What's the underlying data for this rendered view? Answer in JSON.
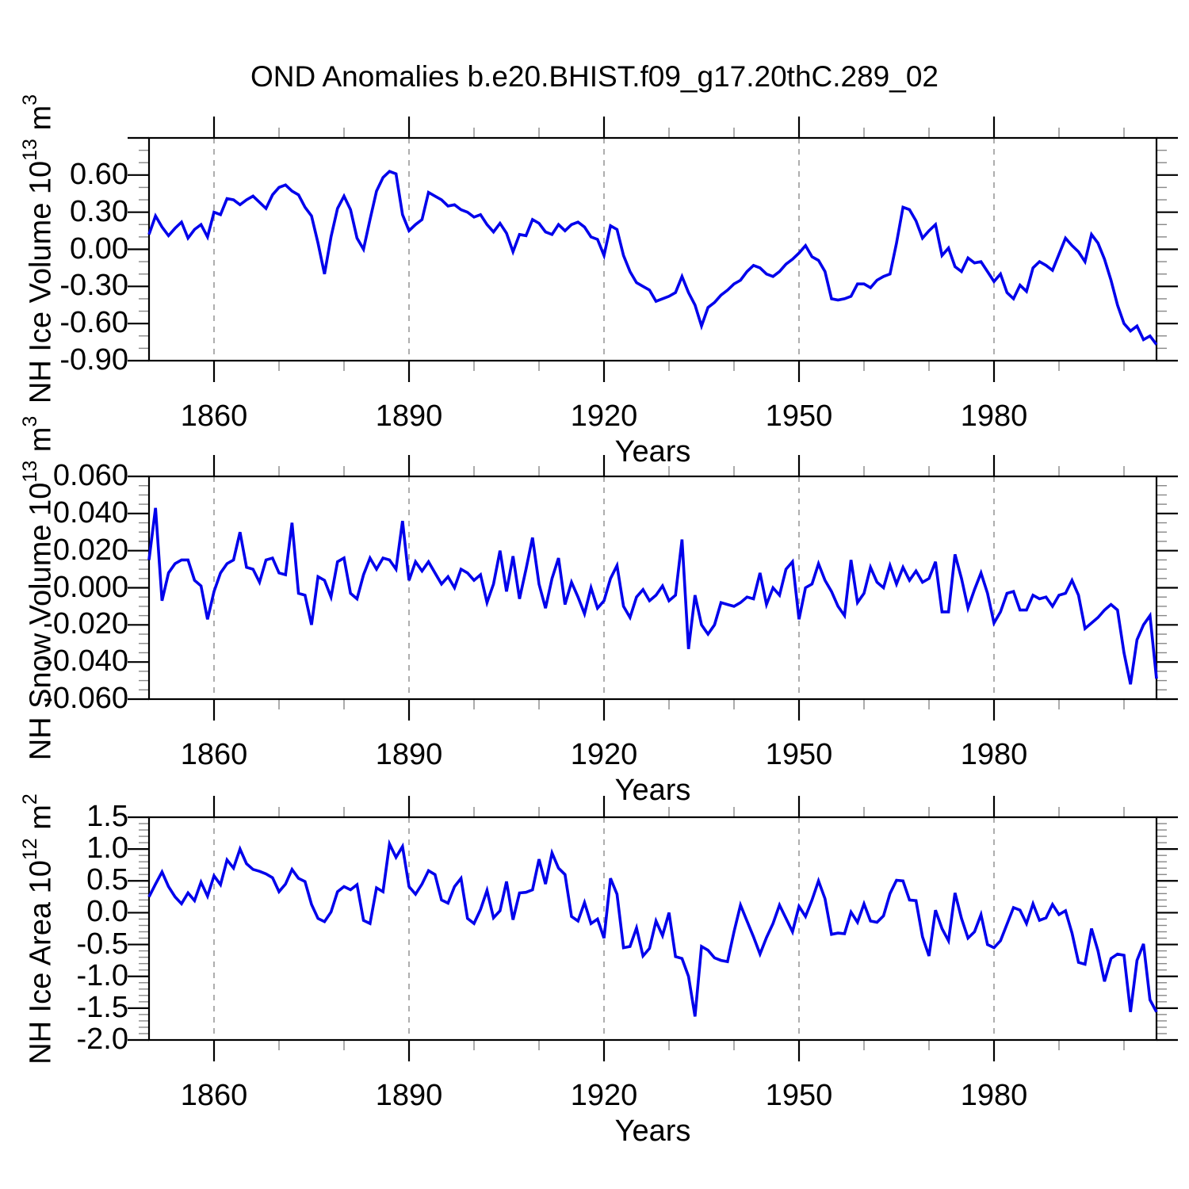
{
  "title": "OND Anomalies b.e20.BHIST.f09_g17.20thC.289_02",
  "colors": {
    "line": "#0000EB",
    "grid": "#999999",
    "axis": "#000000",
    "minor_tick": "#888888"
  },
  "chart_data": [
    {
      "type": "line",
      "panel": "nh-ice-volume",
      "ylabel": {
        "base": "NH Ice Volume 10",
        "exp": "13",
        "unit": " m",
        "unit_exp": "3"
      },
      "xlabel": "Years",
      "ylim": [
        -0.9,
        0.9
      ],
      "yticks": [
        {
          "value": 0.6,
          "label": "0.60"
        },
        {
          "value": 0.3,
          "label": "0.30"
        },
        {
          "value": 0.0,
          "label": "0.00"
        },
        {
          "value": -0.3,
          "label": "-0.30"
        },
        {
          "value": -0.6,
          "label": "-0.60"
        },
        {
          "value": -0.9,
          "label": "-0.90"
        }
      ],
      "ytick_extra": [
        0.9
      ],
      "yminor_step": 0.1,
      "xlim": [
        1850,
        2005
      ],
      "x_start": 1850,
      "x_step": 1,
      "xticks": [
        {
          "value": 1860,
          "label": "1860"
        },
        {
          "value": 1890,
          "label": "1890"
        },
        {
          "value": 1920,
          "label": "1920"
        },
        {
          "value": 1950,
          "label": "1950"
        },
        {
          "value": 1980,
          "label": "1980"
        }
      ],
      "xminor_step": 10,
      "grid": "vertical-dashed",
      "values": [
        0.12,
        0.27,
        0.18,
        0.11,
        0.17,
        0.22,
        0.09,
        0.16,
        0.2,
        0.1,
        0.3,
        0.28,
        0.41,
        0.4,
        0.36,
        0.4,
        0.43,
        0.38,
        0.33,
        0.44,
        0.5,
        0.52,
        0.47,
        0.44,
        0.34,
        0.27,
        0.05,
        -0.2,
        0.1,
        0.33,
        0.43,
        0.32,
        0.09,
        0.0,
        0.24,
        0.47,
        0.58,
        0.63,
        0.61,
        0.28,
        0.15,
        0.2,
        0.24,
        0.46,
        0.43,
        0.4,
        0.35,
        0.36,
        0.32,
        0.3,
        0.26,
        0.28,
        0.2,
        0.14,
        0.21,
        0.13,
        -0.02,
        0.12,
        0.11,
        0.24,
        0.21,
        0.14,
        0.12,
        0.2,
        0.15,
        0.2,
        0.22,
        0.18,
        0.1,
        0.08,
        -0.05,
        0.19,
        0.16,
        -0.05,
        -0.18,
        -0.27,
        -0.3,
        -0.33,
        -0.42,
        -0.4,
        -0.38,
        -0.35,
        -0.22,
        -0.35,
        -0.45,
        -0.62,
        -0.47,
        -0.43,
        -0.37,
        -0.33,
        -0.28,
        -0.25,
        -0.18,
        -0.13,
        -0.15,
        -0.2,
        -0.22,
        -0.18,
        -0.12,
        -0.08,
        -0.03,
        0.03,
        -0.06,
        -0.09,
        -0.18,
        -0.4,
        -0.41,
        -0.4,
        -0.38,
        -0.28,
        -0.28,
        -0.31,
        -0.25,
        -0.22,
        -0.2,
        0.05,
        0.34,
        0.32,
        0.23,
        0.09,
        0.15,
        0.2,
        -0.05,
        0.01,
        -0.14,
        -0.18,
        -0.07,
        -0.11,
        -0.1,
        -0.18,
        -0.26,
        -0.2,
        -0.35,
        -0.4,
        -0.29,
        -0.34,
        -0.15,
        -0.1,
        -0.13,
        -0.17,
        -0.04,
        0.09,
        0.03,
        -0.02,
        -0.1,
        0.12,
        0.05,
        -0.08,
        -0.25,
        -0.45,
        -0.6,
        -0.66,
        -0.62,
        -0.73,
        -0.7,
        -0.77
      ]
    },
    {
      "type": "line",
      "panel": "nh-snow-volume",
      "ylabel": {
        "base": "NH Snow Volume 10",
        "exp": "13",
        "unit": " m",
        "unit_exp": "3"
      },
      "xlabel": "Years",
      "ylim": [
        -0.06,
        0.06
      ],
      "yticks": [
        {
          "value": 0.06,
          "label": "0.060"
        },
        {
          "value": 0.04,
          "label": "0.040"
        },
        {
          "value": 0.02,
          "label": "0.020"
        },
        {
          "value": 0.0,
          "label": "0.000"
        },
        {
          "value": -0.02,
          "label": "-0.020"
        },
        {
          "value": -0.04,
          "label": "-0.040"
        },
        {
          "value": -0.06,
          "label": "-0.060"
        }
      ],
      "ytick_extra": [],
      "yminor_step": 0.005,
      "xlim": [
        1850,
        2005
      ],
      "x_start": 1850,
      "x_step": 1,
      "xticks": [
        {
          "value": 1860,
          "label": "1860"
        },
        {
          "value": 1890,
          "label": "1890"
        },
        {
          "value": 1920,
          "label": "1920"
        },
        {
          "value": 1950,
          "label": "1950"
        },
        {
          "value": 1980,
          "label": "1980"
        }
      ],
      "xminor_step": 10,
      "grid": "vertical-dashed",
      "values": [
        0.015,
        0.043,
        -0.007,
        0.008,
        0.013,
        0.015,
        0.015,
        0.004,
        0.001,
        -0.017,
        -0.002,
        0.008,
        0.013,
        0.015,
        0.03,
        0.011,
        0.01,
        0.003,
        0.015,
        0.016,
        0.008,
        0.007,
        0.035,
        -0.003,
        -0.004,
        -0.02,
        0.006,
        0.004,
        -0.005,
        0.014,
        0.016,
        -0.003,
        -0.006,
        0.007,
        0.016,
        0.01,
        0.016,
        0.015,
        0.01,
        0.036,
        0.004,
        0.014,
        0.009,
        0.014,
        0.008,
        0.002,
        0.006,
        0.0,
        0.01,
        0.008,
        0.004,
        0.007,
        -0.008,
        0.002,
        0.02,
        -0.002,
        0.017,
        -0.006,
        0.01,
        0.027,
        0.002,
        -0.011,
        0.005,
        0.016,
        -0.009,
        0.003,
        -0.005,
        -0.014,
        0.0,
        -0.011,
        -0.007,
        0.005,
        0.012,
        -0.01,
        -0.016,
        -0.005,
        -0.001,
        -0.007,
        -0.004,
        0.001,
        -0.007,
        -0.004,
        0.026,
        -0.033,
        -0.004,
        -0.02,
        -0.025,
        -0.02,
        -0.008,
        -0.009,
        -0.01,
        -0.008,
        -0.005,
        -0.006,
        0.008,
        -0.009,
        0.0,
        -0.004,
        0.01,
        0.014,
        -0.017,
        0.0,
        0.002,
        0.013,
        0.004,
        -0.002,
        -0.01,
        -0.015,
        0.015,
        -0.008,
        -0.003,
        0.011,
        0.003,
        0.0,
        0.012,
        0.002,
        0.011,
        0.004,
        0.009,
        0.003,
        0.005,
        0.014,
        -0.013,
        -0.013,
        0.018,
        0.005,
        -0.011,
        -0.001,
        0.008,
        -0.003,
        -0.019,
        -0.013,
        -0.003,
        -0.002,
        -0.012,
        -0.012,
        -0.004,
        -0.006,
        -0.005,
        -0.01,
        -0.004,
        -0.003,
        0.004,
        -0.004,
        -0.022,
        -0.019,
        -0.016,
        -0.012,
        -0.009,
        -0.012,
        -0.035,
        -0.052,
        -0.028,
        -0.02,
        -0.015,
        -0.049
      ]
    },
    {
      "type": "line",
      "panel": "nh-ice-area",
      "ylabel": {
        "base": "NH Ice Area 10",
        "exp": "12",
        "unit": " m",
        "unit_exp": "2"
      },
      "xlabel": "Years",
      "ylim": [
        -2.0,
        1.5
      ],
      "yticks": [
        {
          "value": 1.5,
          "label": "1.5"
        },
        {
          "value": 1.0,
          "label": "1.0"
        },
        {
          "value": 0.5,
          "label": "0.5"
        },
        {
          "value": 0.0,
          "label": "0.0"
        },
        {
          "value": -0.5,
          "label": "-0.5"
        },
        {
          "value": -1.0,
          "label": "-1.0"
        },
        {
          "value": -1.5,
          "label": "-1.5"
        },
        {
          "value": -2.0,
          "label": "-2.0"
        }
      ],
      "ytick_extra": [],
      "yminor_step": 0.1,
      "xlim": [
        1850,
        2005
      ],
      "x_start": 1850,
      "x_step": 1,
      "xticks": [
        {
          "value": 1860,
          "label": "1860"
        },
        {
          "value": 1890,
          "label": "1890"
        },
        {
          "value": 1920,
          "label": "1920"
        },
        {
          "value": 1950,
          "label": "1950"
        },
        {
          "value": 1980,
          "label": "1980"
        }
      ],
      "xminor_step": 10,
      "grid": "vertical-dashed",
      "values": [
        0.25,
        0.45,
        0.64,
        0.41,
        0.25,
        0.14,
        0.31,
        0.19,
        0.48,
        0.26,
        0.58,
        0.44,
        0.83,
        0.7,
        1.0,
        0.77,
        0.68,
        0.65,
        0.61,
        0.55,
        0.33,
        0.45,
        0.68,
        0.54,
        0.49,
        0.13,
        -0.09,
        -0.14,
        0.01,
        0.33,
        0.41,
        0.36,
        0.44,
        -0.12,
        -0.17,
        0.39,
        0.33,
        1.08,
        0.87,
        1.04,
        0.41,
        0.29,
        0.45,
        0.66,
        0.6,
        0.2,
        0.15,
        0.41,
        0.54,
        -0.09,
        -0.17,
        0.05,
        0.35,
        -0.08,
        0.03,
        0.49,
        -0.11,
        0.31,
        0.32,
        0.36,
        0.84,
        0.45,
        0.94,
        0.7,
        0.6,
        -0.06,
        -0.13,
        0.16,
        -0.17,
        -0.1,
        -0.4,
        0.54,
        0.29,
        -0.55,
        -0.53,
        -0.24,
        -0.68,
        -0.56,
        -0.13,
        -0.36,
        0.0,
        -0.69,
        -0.72,
        -1.0,
        -1.63,
        -0.53,
        -0.59,
        -0.71,
        -0.75,
        -0.77,
        -0.3,
        0.12,
        -0.13,
        -0.38,
        -0.65,
        -0.39,
        -0.17,
        0.12,
        -0.09,
        -0.3,
        0.1,
        -0.06,
        0.2,
        0.5,
        0.22,
        -0.34,
        -0.32,
        -0.33,
        0.01,
        -0.15,
        0.14,
        -0.13,
        -0.15,
        -0.05,
        0.3,
        0.51,
        0.5,
        0.2,
        0.19,
        -0.38,
        -0.68,
        0.04,
        -0.25,
        -0.44,
        0.31,
        -0.09,
        -0.4,
        -0.3,
        -0.03,
        -0.5,
        -0.55,
        -0.44,
        -0.18,
        0.08,
        0.04,
        -0.17,
        0.14,
        -0.12,
        -0.08,
        0.13,
        -0.03,
        0.03,
        -0.32,
        -0.78,
        -0.81,
        -0.25,
        -0.6,
        -1.08,
        -0.72,
        -0.65,
        -0.67,
        -1.56,
        -0.75,
        -0.49,
        -1.37,
        -1.56
      ]
    }
  ]
}
